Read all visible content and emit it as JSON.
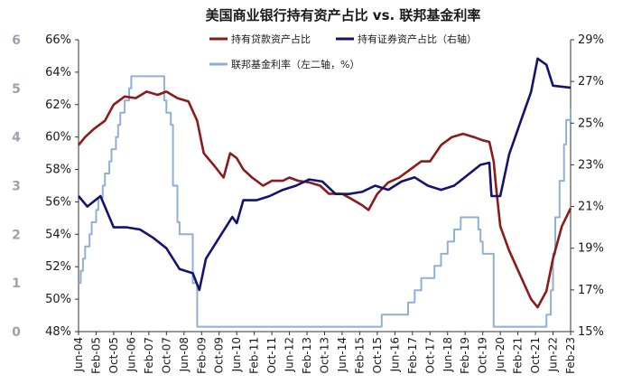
{
  "chart_data": {
    "type": "line",
    "title": "美国商业银行持有资产占比 vs. 联邦基金利率",
    "colors": {
      "loans": "#8b1a1a",
      "securities": "#14146e",
      "fed_funds": "#8fb0d4"
    },
    "left_axis": {
      "ylim": [
        48,
        66
      ],
      "ticks": [
        "48%",
        "50%",
        "52%",
        "54%",
        "56%",
        "58%",
        "60%",
        "62%",
        "64%",
        "66%"
      ]
    },
    "outer_left_axis": {
      "ylim": [
        0,
        6
      ],
      "ticks": [
        "0",
        "1",
        "2",
        "3",
        "4",
        "5",
        "6"
      ]
    },
    "right_axis": {
      "ylim": [
        15,
        29
      ],
      "ticks": [
        "15%",
        "17%",
        "19%",
        "21%",
        "23%",
        "25%",
        "27%",
        "29%"
      ]
    },
    "x_ticks": [
      "Jun-04",
      "Feb-05",
      "Oct-05",
      "Jun-06",
      "Feb-07",
      "Oct-07",
      "Jun-08",
      "Feb-09",
      "Oct-09",
      "Jun-10",
      "Feb-11",
      "Oct-11",
      "Jun-12",
      "Feb-13",
      "Oct-13",
      "Jun-14",
      "Feb-15",
      "Oct-15",
      "Jun-16",
      "Feb-17",
      "Oct-17",
      "Jun-18",
      "Feb-19",
      "Oct-19",
      "Jun-20",
      "Feb-21",
      "Oct-21",
      "Jun-22",
      "Feb-23"
    ],
    "x_range": [
      "2004-06",
      "2023-02"
    ],
    "series": [
      {
        "name": "持有贷款资产占比",
        "axis": "left",
        "points": [
          [
            "2004-06",
            59.5
          ],
          [
            "2004-09",
            60.0
          ],
          [
            "2005-01",
            60.5
          ],
          [
            "2005-06",
            61.0
          ],
          [
            "2005-10",
            62.0
          ],
          [
            "2006-03",
            62.5
          ],
          [
            "2006-08",
            62.4
          ],
          [
            "2007-01",
            62.8
          ],
          [
            "2007-06",
            62.6
          ],
          [
            "2007-10",
            62.8
          ],
          [
            "2008-03",
            62.4
          ],
          [
            "2008-08",
            62.2
          ],
          [
            "2008-12",
            61.0
          ],
          [
            "2009-03",
            59.0
          ],
          [
            "2009-08",
            58.2
          ],
          [
            "2009-12",
            57.5
          ],
          [
            "2010-03",
            59.0
          ],
          [
            "2010-06",
            58.7
          ],
          [
            "2010-09",
            58.0
          ],
          [
            "2011-01",
            57.5
          ],
          [
            "2011-06",
            57.0
          ],
          [
            "2011-10",
            57.3
          ],
          [
            "2012-03",
            57.3
          ],
          [
            "2012-06",
            57.5
          ],
          [
            "2012-10",
            57.3
          ],
          [
            "2013-03",
            57.2
          ],
          [
            "2013-08",
            57.0
          ],
          [
            "2013-12",
            56.5
          ],
          [
            "2014-06",
            56.5
          ],
          [
            "2014-10",
            56.2
          ],
          [
            "2015-03",
            55.8
          ],
          [
            "2015-06",
            55.5
          ],
          [
            "2015-10",
            56.5
          ],
          [
            "2016-03",
            57.2
          ],
          [
            "2016-08",
            57.5
          ],
          [
            "2017-01",
            58.0
          ],
          [
            "2017-06",
            58.5
          ],
          [
            "2017-10",
            58.5
          ],
          [
            "2018-03",
            59.5
          ],
          [
            "2018-08",
            60.0
          ],
          [
            "2019-01",
            60.2
          ],
          [
            "2019-06",
            60.0
          ],
          [
            "2019-10",
            59.8
          ],
          [
            "2020-01",
            59.7
          ],
          [
            "2020-03",
            58.5
          ],
          [
            "2020-04",
            57.0
          ],
          [
            "2020-06",
            54.5
          ],
          [
            "2020-10",
            53.0
          ],
          [
            "2021-03",
            51.5
          ],
          [
            "2021-08",
            50.0
          ],
          [
            "2021-11",
            49.5
          ],
          [
            "2022-03",
            50.5
          ],
          [
            "2022-06",
            52.5
          ],
          [
            "2022-10",
            54.5
          ],
          [
            "2023-02",
            55.6
          ]
        ]
      },
      {
        "name": "持有证券资产占比（右轴）",
        "axis": "right",
        "points": [
          [
            "2004-06",
            21.5
          ],
          [
            "2004-10",
            21.0
          ],
          [
            "2005-04",
            21.5
          ],
          [
            "2005-10",
            20.0
          ],
          [
            "2006-04",
            20.0
          ],
          [
            "2006-10",
            19.9
          ],
          [
            "2007-04",
            19.5
          ],
          [
            "2007-10",
            19.0
          ],
          [
            "2008-04",
            18.0
          ],
          [
            "2008-10",
            17.8
          ],
          [
            "2009-01",
            17.0
          ],
          [
            "2009-04",
            18.5
          ],
          [
            "2009-10",
            19.5
          ],
          [
            "2010-04",
            20.5
          ],
          [
            "2010-06",
            20.2
          ],
          [
            "2010-09",
            21.3
          ],
          [
            "2011-03",
            21.3
          ],
          [
            "2011-09",
            21.5
          ],
          [
            "2012-03",
            21.8
          ],
          [
            "2012-09",
            22.0
          ],
          [
            "2013-03",
            22.3
          ],
          [
            "2013-09",
            22.2
          ],
          [
            "2014-03",
            21.6
          ],
          [
            "2014-09",
            21.6
          ],
          [
            "2015-03",
            21.7
          ],
          [
            "2015-09",
            22.0
          ],
          [
            "2016-03",
            21.8
          ],
          [
            "2016-09",
            22.2
          ],
          [
            "2017-03",
            22.4
          ],
          [
            "2017-09",
            22.0
          ],
          [
            "2018-03",
            21.8
          ],
          [
            "2018-09",
            22.0
          ],
          [
            "2019-03",
            22.5
          ],
          [
            "2019-09",
            23.0
          ],
          [
            "2020-01",
            23.1
          ],
          [
            "2020-02",
            21.5
          ],
          [
            "2020-06",
            21.5
          ],
          [
            "2020-10",
            23.5
          ],
          [
            "2021-03",
            25.0
          ],
          [
            "2021-08",
            26.5
          ],
          [
            "2021-11",
            28.1
          ],
          [
            "2022-03",
            27.8
          ],
          [
            "2022-06",
            26.8
          ],
          [
            "2023-02",
            26.7
          ]
        ]
      },
      {
        "name": "联邦基金利率（左二轴，%）",
        "axis": "outer_left",
        "step": true,
        "points": [
          [
            "2004-06",
            1.0
          ],
          [
            "2004-07",
            1.25
          ],
          [
            "2004-08",
            1.5
          ],
          [
            "2004-09",
            1.75
          ],
          [
            "2004-11",
            2.0
          ],
          [
            "2004-12",
            2.25
          ],
          [
            "2005-02",
            2.5
          ],
          [
            "2005-03",
            2.75
          ],
          [
            "2005-05",
            3.0
          ],
          [
            "2005-06",
            3.25
          ],
          [
            "2005-08",
            3.5
          ],
          [
            "2005-09",
            3.75
          ],
          [
            "2005-11",
            4.0
          ],
          [
            "2005-12",
            4.25
          ],
          [
            "2006-01",
            4.5
          ],
          [
            "2006-03",
            4.75
          ],
          [
            "2006-05",
            5.0
          ],
          [
            "2006-06",
            5.25
          ],
          [
            "2007-09",
            4.75
          ],
          [
            "2007-10",
            4.5
          ],
          [
            "2007-12",
            4.25
          ],
          [
            "2008-01",
            3.0
          ],
          [
            "2008-03",
            2.25
          ],
          [
            "2008-04",
            2.0
          ],
          [
            "2008-10",
            1.0
          ],
          [
            "2008-12",
            0.1
          ],
          [
            "2015-12",
            0.35
          ],
          [
            "2016-12",
            0.6
          ],
          [
            "2017-03",
            0.85
          ],
          [
            "2017-06",
            1.1
          ],
          [
            "2017-12",
            1.35
          ],
          [
            "2018-03",
            1.6
          ],
          [
            "2018-06",
            1.85
          ],
          [
            "2018-09",
            2.1
          ],
          [
            "2018-12",
            2.35
          ],
          [
            "2019-08",
            2.1
          ],
          [
            "2019-09",
            1.85
          ],
          [
            "2019-10",
            1.6
          ],
          [
            "2020-03",
            0.1
          ],
          [
            "2022-03",
            0.35
          ],
          [
            "2022-05",
            0.85
          ],
          [
            "2022-06",
            1.6
          ],
          [
            "2022-07",
            2.35
          ],
          [
            "2022-09",
            3.1
          ],
          [
            "2022-11",
            3.85
          ],
          [
            "2022-12",
            4.35
          ],
          [
            "2023-02",
            4.6
          ]
        ]
      }
    ]
  }
}
